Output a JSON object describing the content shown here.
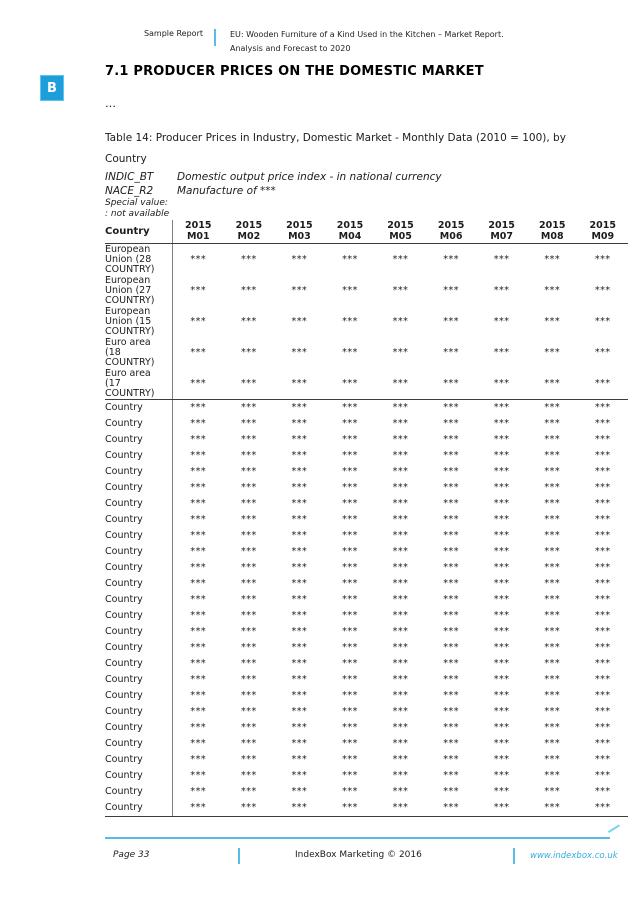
{
  "colors": {
    "accent_blue": "#1d9dd9",
    "line_blue": "#54bce6",
    "link_blue": "#35acde",
    "border_dark": "#3c3c3c",
    "text": "#1c1c1c"
  },
  "header": {
    "logo_letter": "B",
    "report_label": "Sample Report",
    "doc_title_line1": "EU: Wooden Furniture of a Kind Used in the Kitchen – Market Report.",
    "doc_title_line2": "Analysis and Forecast to 2020"
  },
  "section": {
    "heading": "7.1 PRODUCER PRICES ON THE DOMESTIC MARKET",
    "ellipsis": "…",
    "table_caption_line1": "Table 14: Producer Prices in Industry, Domestic Market - Monthly Data (2010 = 100), by",
    "table_caption_line2": "Country",
    "meta": [
      {
        "code": "INDIC_BT",
        "desc": "Domestic output price index - in national currency"
      },
      {
        "code": "NACE_R2",
        "desc": "Manufacture of ***"
      }
    ],
    "special_value_label": "Special value:",
    "special_value_note": ": not available"
  },
  "table": {
    "country_header": "Country",
    "column_headers": [
      {
        "year": "2015",
        "month": "M01"
      },
      {
        "year": "2015",
        "month": "M02"
      },
      {
        "year": "2015",
        "month": "M03"
      },
      {
        "year": "2015",
        "month": "M04"
      },
      {
        "year": "2015",
        "month": "M05"
      },
      {
        "year": "2015",
        "month": "M06"
      },
      {
        "year": "2015",
        "month": "M07"
      },
      {
        "year": "2015",
        "month": "M08"
      },
      {
        "year": "2015",
        "month": "M09"
      }
    ],
    "placeholder": "***",
    "eu_rows": [
      "European Union (28 COUNTRY)",
      "European Union (27 COUNTRY)",
      "European Union (15 COUNTRY)",
      "Euro area (18 COUNTRY)",
      "Euro area (17 COUNTRY)"
    ],
    "country_row_label": "Country",
    "country_row_count": 26
  },
  "footer": {
    "page_label": "Page 33",
    "copyright": "IndexBox Marketing © 2016",
    "website": "www.indexbox.co.uk"
  }
}
